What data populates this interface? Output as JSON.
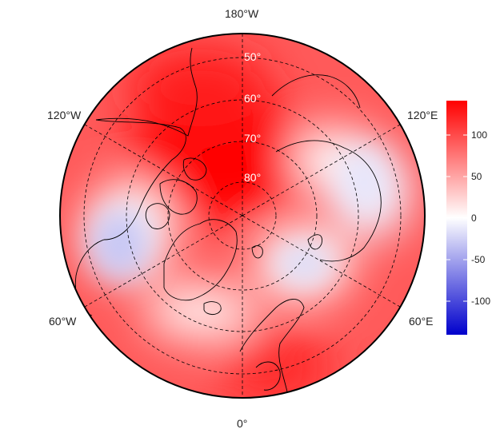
{
  "map": {
    "projection": "north polar stereographic",
    "longitude_labels": {
      "top": "180°W",
      "upper_left": "120°W",
      "upper_right": "120°E",
      "lower_left": "60°W",
      "lower_right": "60°E",
      "bottom": "0°"
    },
    "latitude_labels": [
      "50°",
      "60°",
      "70°",
      "80°"
    ],
    "graticule_style": "dashed",
    "coastlines": true,
    "country_borders": true
  },
  "colorbar": {
    "ticks": [
      "100",
      "50",
      "0",
      "-50",
      "-100"
    ],
    "tick_values": [
      100,
      50,
      0,
      -50,
      -100
    ],
    "range": [
      -140,
      140
    ],
    "colors": {
      "max": "#ff0000",
      "mid": "#ffffff",
      "min": "#0000cc"
    }
  },
  "field_regions": [
    {
      "description": "strong positive over Arctic Ocean / Alaska side",
      "value": 130
    },
    {
      "description": "negative over Hudson Bay / Labrador",
      "value": -45
    },
    {
      "description": "negative over Barents / Kara Sea",
      "value": -30
    },
    {
      "description": "negative over central Siberia",
      "value": -20
    },
    {
      "description": "positive over Europe / North Atlantic",
      "value": 90
    }
  ]
}
